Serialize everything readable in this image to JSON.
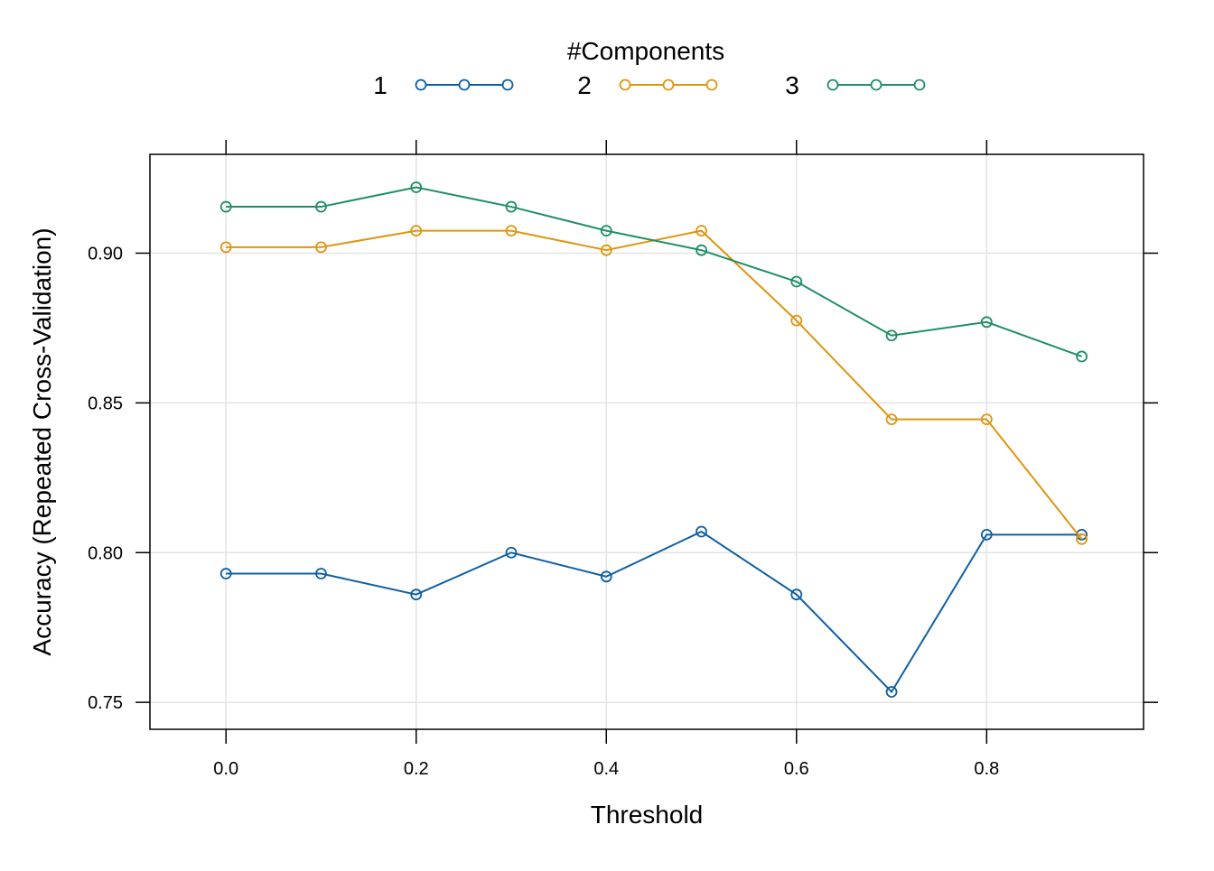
{
  "chart_data": {
    "type": "line",
    "title": "",
    "xlabel": "Threshold",
    "ylabel": "Accuracy (Repeated Cross-Validation)",
    "x": [
      0.0,
      0.1,
      0.2,
      0.3,
      0.4,
      0.5,
      0.6,
      0.7,
      0.8,
      0.9
    ],
    "xlim": [
      -0.08,
      0.965
    ],
    "ylim": [
      0.741,
      0.933
    ],
    "x_ticks": [
      0.0,
      0.2,
      0.4,
      0.6,
      0.8
    ],
    "x_tick_labels": [
      "0.0",
      "0.2",
      "0.4",
      "0.6",
      "0.8"
    ],
    "y_ticks": [
      0.75,
      0.8,
      0.85,
      0.9
    ],
    "y_tick_labels": [
      "0.75",
      "0.80",
      "0.85",
      "0.90"
    ],
    "grid": true,
    "legend": {
      "title": "#Components",
      "placement": "top"
    },
    "series": [
      {
        "name": "1",
        "color": "#0f5fa3",
        "values": [
          0.793,
          0.793,
          0.786,
          0.8,
          0.792,
          0.807,
          0.786,
          0.7535,
          0.806,
          0.806
        ]
      },
      {
        "name": "2",
        "color": "#e0950f",
        "values": [
          0.902,
          0.902,
          0.9075,
          0.9075,
          0.901,
          0.9075,
          0.8775,
          0.8445,
          0.8445,
          0.8045
        ]
      },
      {
        "name": "3",
        "color": "#1f8f65",
        "values": [
          0.9155,
          0.9155,
          0.922,
          0.9155,
          0.9075,
          0.901,
          0.8905,
          0.8725,
          0.877,
          0.8655
        ]
      }
    ]
  }
}
